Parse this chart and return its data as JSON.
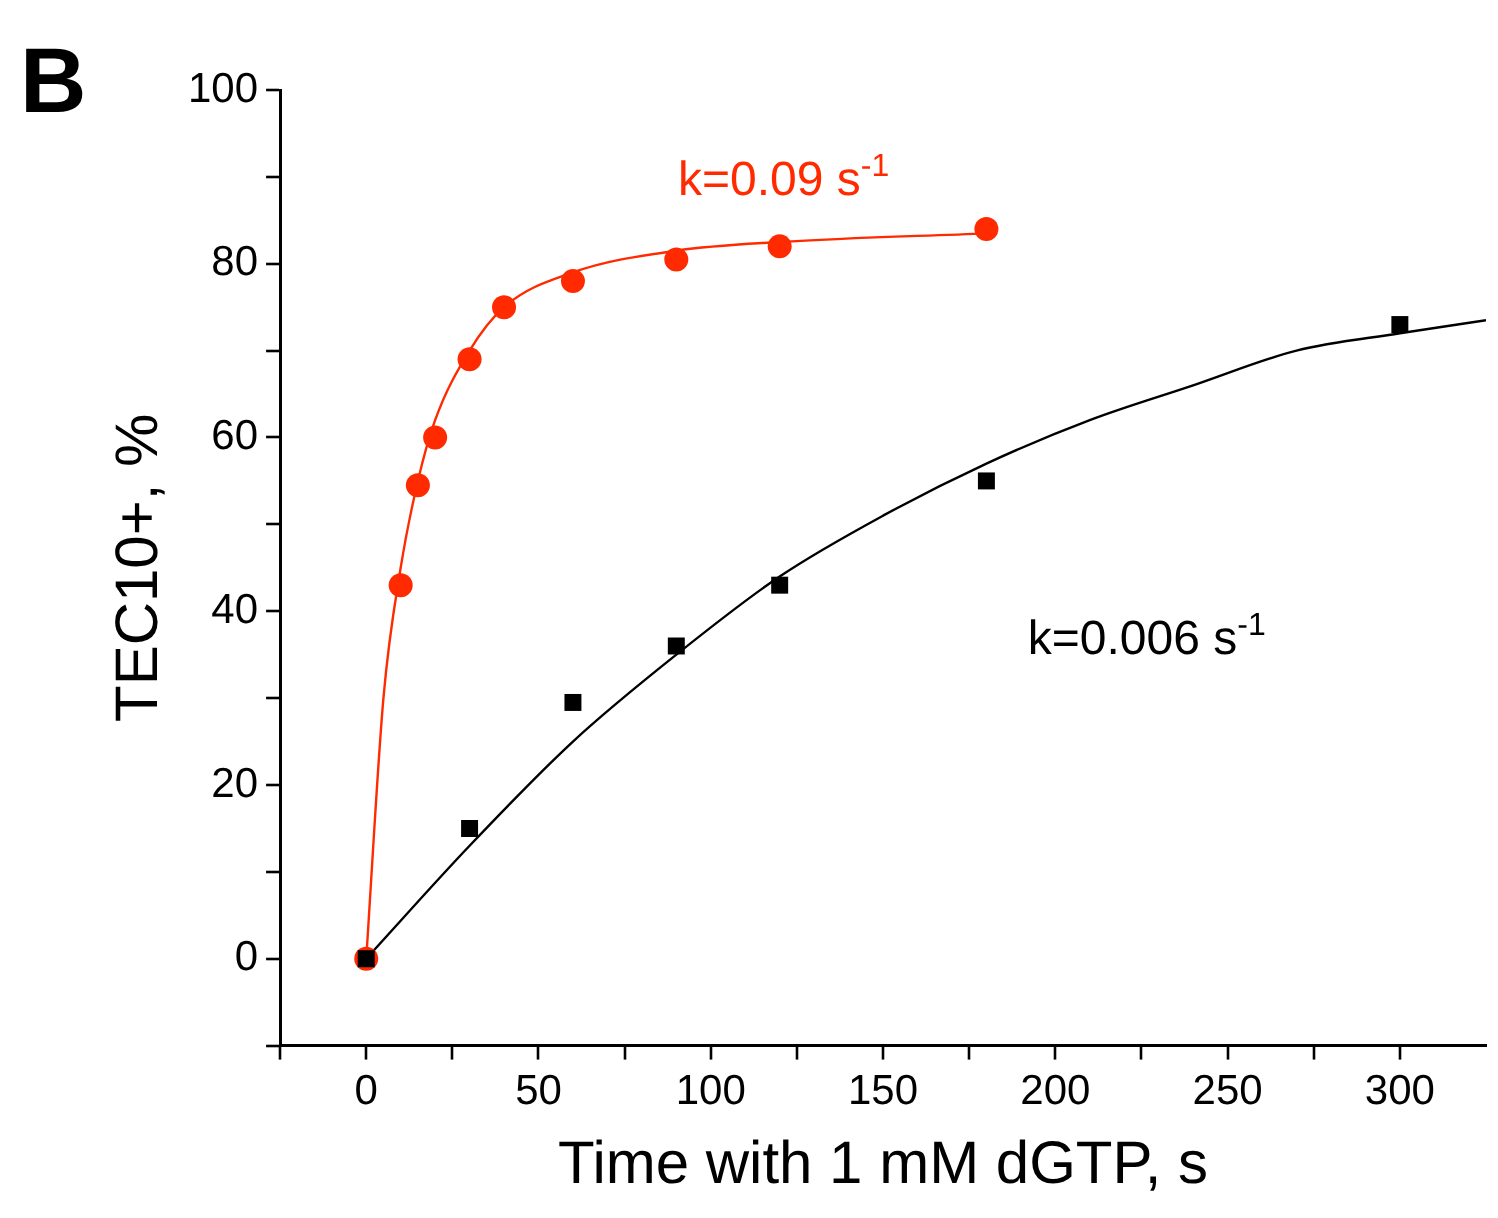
{
  "chart_data": {
    "type": "scatter",
    "xlabel": "Time with 1 mM dGTP, s",
    "ylabel": "TEC10+, %",
    "xlim": [
      -25,
      325
    ],
    "ylim": [
      -10,
      100
    ],
    "xticks": [
      {
        "value": -25,
        "label": null
      },
      0,
      {
        "value": 25,
        "label": null
      },
      50,
      {
        "value": 75,
        "label": null
      },
      100,
      {
        "value": 125,
        "label": null
      },
      150,
      {
        "value": 175,
        "label": null
      },
      200,
      {
        "value": 225,
        "label": null
      },
      250,
      {
        "value": 275,
        "label": null
      },
      300
    ],
    "yticks": [
      {
        "value": -10,
        "label": null
      },
      0,
      {
        "value": 10,
        "label": null
      },
      20,
      {
        "value": 30,
        "label": null
      },
      40,
      {
        "value": 50,
        "label": null
      },
      60,
      {
        "value": 70,
        "label": null
      },
      80,
      {
        "value": 90,
        "label": null
      },
      100
    ],
    "series": [
      {
        "type": "line",
        "marker": "none",
        "color": "#ff2a00",
        "x": [
          0,
          5,
          10,
          15,
          20,
          30,
          40,
          60,
          90,
          120,
          180
        ],
        "values": [
          0,
          30,
          45,
          55,
          62,
          70,
          75,
          79,
          81.5,
          82.5,
          83.5
        ]
      },
      {
        "type": "line",
        "marker": "none",
        "color": "#000000",
        "x": [
          0,
          30,
          60,
          90,
          120,
          150,
          180,
          210,
          240,
          270,
          300,
          325
        ],
        "values": [
          0,
          13,
          25,
          35,
          44,
          51,
          57,
          62,
          66,
          70,
          72,
          73.5
        ]
      },
      {
        "type": "scatter",
        "marker": "circle",
        "color": "#ff2a00",
        "x": [
          0,
          10,
          15,
          20,
          30,
          40,
          60,
          90,
          120,
          180
        ],
        "values": [
          0,
          43,
          54.5,
          60,
          69,
          75,
          78,
          80.5,
          82,
          84
        ]
      },
      {
        "type": "scatter",
        "marker": "square",
        "color": "#000000",
        "x": [
          0,
          30,
          60,
          90,
          120,
          180,
          300
        ],
        "values": [
          0,
          15,
          29.5,
          36,
          43,
          55,
          73
        ]
      }
    ],
    "annotations": [
      "B",
      "k=0.09 s$^{-1}$",
      "k=0.006 s$^{-1}$"
    ]
  }
}
